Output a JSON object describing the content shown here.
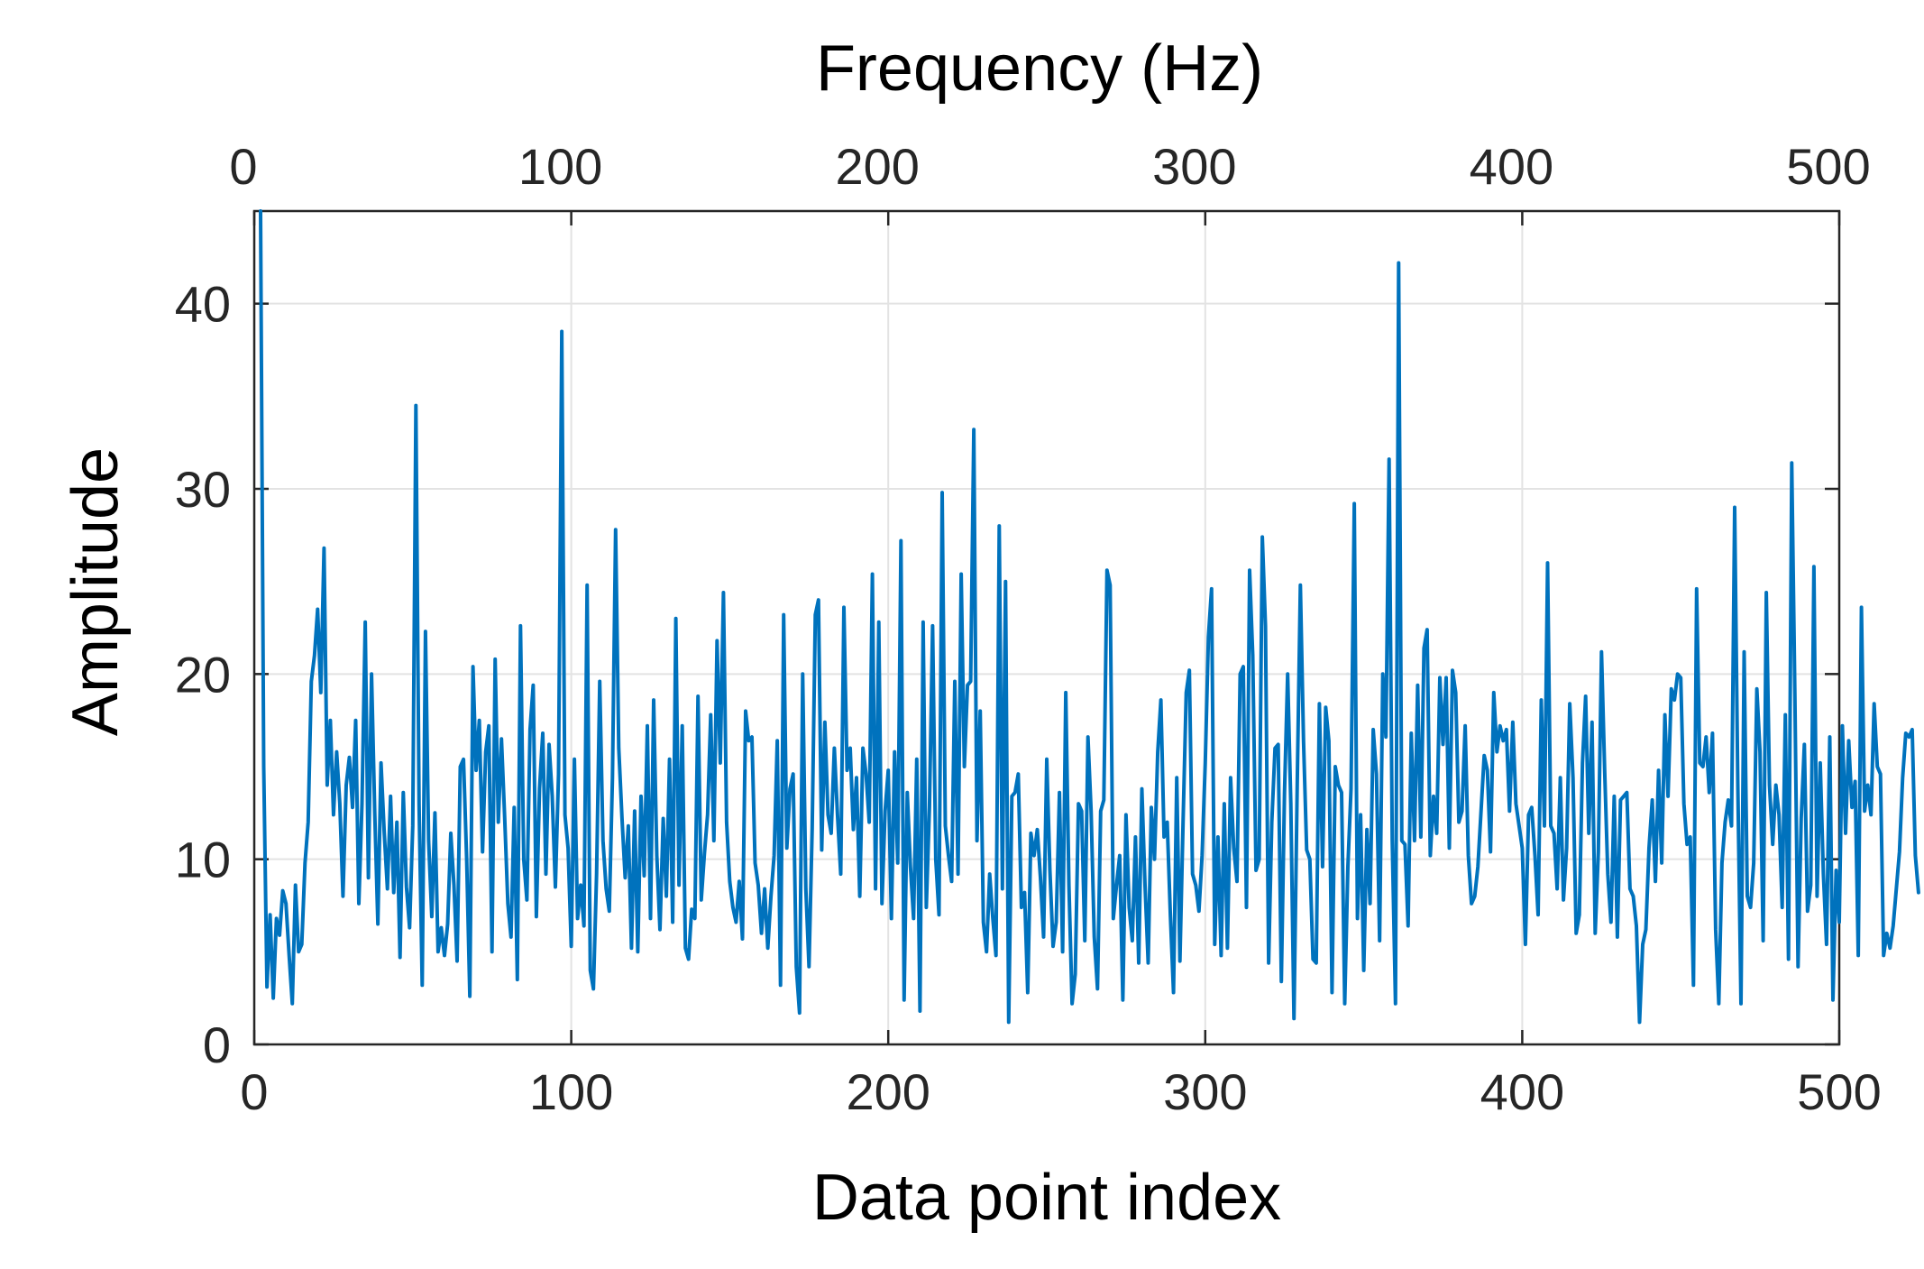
{
  "chart_data": {
    "type": "line",
    "title": "",
    "xlabel": "Data point index",
    "ylabel": "Amplitude",
    "x2label": "Frequency (Hz)",
    "xlim": [
      0,
      500
    ],
    "ylim": [
      0,
      45
    ],
    "x2lim": [
      0,
      500
    ],
    "xticks": [
      "0",
      "100",
      "200",
      "300",
      "400",
      "500"
    ],
    "yticks": [
      "0",
      "10",
      "20",
      "30",
      "40"
    ],
    "x2ticks": [
      "0",
      "100",
      "200",
      "300",
      "400",
      "500"
    ],
    "grid": true,
    "legend": "none",
    "series_color": "#0072BD",
    "series": [
      {
        "name": "",
        "x_start": 2,
        "x_step": 1,
        "values": [
          45,
          15,
          3.1,
          7,
          2.5,
          6.8,
          5.9,
          8.3,
          7.6,
          4.8,
          2.2,
          8.6,
          5,
          5.4,
          9.8,
          12,
          19.6,
          21,
          23.5,
          19,
          26.8,
          14,
          17.5,
          12.4,
          15.8,
          13,
          8,
          14,
          15.5,
          12.8,
          17.5,
          7.6,
          13,
          22.8,
          9,
          20,
          12.6,
          6.5,
          15.2,
          11.4,
          8.4,
          13.4,
          8.2,
          12,
          4.7,
          13.6,
          8.5,
          6.3,
          11.8,
          34.5,
          13,
          3.2,
          22.3,
          11,
          6.9,
          12.5,
          5,
          6.3,
          4.8,
          6.5,
          11.4,
          8.6,
          4.5,
          15,
          15.4,
          10,
          2.6,
          20.4,
          14.8,
          17.5,
          10.4,
          15.8,
          17.2,
          5,
          20.8,
          12,
          16.5,
          12.2,
          7.6,
          5.8,
          12.8,
          3.5,
          22.6,
          10,
          7.8,
          17,
          19.4,
          6.9,
          13.8,
          16.8,
          9.2,
          16.2,
          13.4,
          8.5,
          14.6,
          38.5,
          12.4,
          10.6,
          5.3,
          15.4,
          6.8,
          8.6,
          6.4,
          24.8,
          4,
          3,
          9.2,
          19.6,
          11,
          8.4,
          7.2,
          14.4,
          27.8,
          16,
          12.2,
          9,
          11.8,
          5.2,
          12.6,
          5,
          13.4,
          9.1,
          17.2,
          6.8,
          18.6,
          10.2,
          6.2,
          12.2,
          8,
          15.4,
          6.6,
          23,
          8.6,
          17.2,
          5.2,
          4.6,
          7.3,
          6.8,
          18.8,
          7.8,
          10.3,
          12.4,
          17.8,
          11,
          21.8,
          15.2,
          24.4,
          12,
          8.8,
          7.4,
          6.6,
          8.8,
          5.7,
          18,
          16.4,
          16.6,
          9.8,
          8.6,
          6,
          8.4,
          5.2,
          8,
          10.2,
          16.4,
          3.2,
          23.2,
          10.6,
          13.8,
          14.6,
          4.2,
          1.7,
          20,
          8.4,
          4.2,
          11.6,
          23.2,
          24,
          10.5,
          17.4,
          12.4,
          11.4,
          16,
          12.4,
          9.2,
          23.6,
          14.8,
          16,
          11.6,
          14.4,
          8,
          16,
          14.6,
          12,
          25.4,
          8.4,
          22.8,
          7.6,
          12.6,
          14.8,
          6.8,
          15.8,
          9.8,
          27.2,
          2.4,
          13.6,
          9.6,
          6.8,
          15.4,
          1.8,
          22.8,
          7.4,
          12.8,
          22.6,
          10,
          7,
          29.8,
          11.8,
          10.2,
          8.8,
          19.6,
          9.2,
          25.4,
          15,
          19.4,
          19.6,
          33.2,
          11,
          18,
          6.6,
          5,
          9.2,
          6.8,
          4.8,
          28,
          8.4,
          25,
          1.2,
          13.4,
          13.6,
          14.6,
          7.4,
          8.2,
          2.8,
          11.4,
          10.2,
          11.6,
          9,
          5.8,
          15.4,
          9.4,
          5.3,
          6.6,
          13.6,
          5,
          19,
          8.6,
          2.2,
          3.8,
          13,
          12.6,
          5.6,
          16.6,
          12.6,
          5.8,
          3,
          12.6,
          13.2,
          25.6,
          24.8,
          6.8,
          8.6,
          10.2,
          2.4,
          12.4,
          7.4,
          5.6,
          11.2,
          4.4,
          13.8,
          8.6,
          4.4,
          12.8,
          10,
          15.8,
          18.6,
          11.2,
          12,
          7,
          2.8,
          14.4,
          4.5,
          12,
          19,
          20.2,
          9.2,
          8.6,
          7.2,
          10.2,
          15.2,
          22,
          24.6,
          5.4,
          11.2,
          4.8,
          13,
          5.2,
          14.4,
          10.6,
          8.8,
          20,
          20.4,
          7.4,
          25.6,
          21,
          9.4,
          10,
          27.4,
          22.6,
          4.4,
          12,
          16,
          16.2,
          3.4,
          13.6,
          20,
          13,
          1.4,
          14,
          24.8,
          16.4,
          10.5,
          10,
          4.6,
          4.4,
          18.4,
          9.6,
          18.2,
          16.4,
          2.8,
          15,
          14,
          13.6,
          2.2,
          9.6,
          13.8,
          29.2,
          6.8,
          12.4,
          4,
          11.6,
          7.6,
          17,
          14.6,
          5.6,
          20,
          16.6,
          31.6,
          11,
          2.2,
          42.2,
          11,
          10.8,
          6.4,
          16.8,
          11,
          19.4,
          11.2,
          21.4,
          22.4,
          10.2,
          13.4,
          11.4,
          19.8,
          16.2,
          19.8,
          10.6,
          20.2,
          19,
          12,
          12.6,
          17.2,
          10.2,
          7.6,
          8,
          9.6,
          12.6,
          15.6,
          14.8,
          10.4,
          19,
          15.8,
          17.2,
          16.4,
          17,
          12.6,
          17.4,
          13,
          11.8,
          10.6,
          5.4,
          12.4,
          12.8,
          10.2,
          7,
          18.6,
          11.8,
          26,
          11.8,
          11.4,
          8.4,
          14.4,
          7.8,
          10.6,
          18.4,
          14.4,
          6,
          7,
          15.2,
          18.8,
          11.4,
          17.4,
          6,
          10.4,
          21.2,
          14.8,
          9.2,
          6.6,
          13.4,
          5.8,
          13.2,
          13.4,
          13.6,
          8.4,
          8,
          6.4,
          1.2,
          5.4,
          6.2,
          10.6,
          13.2,
          8.8,
          14.8,
          9.8,
          17.8,
          13.4,
          19.2,
          18.6,
          20,
          19.8,
          13,
          10.8,
          11.2,
          3.2,
          24.6,
          15.2,
          15,
          16.6,
          13.6,
          16.8,
          6.2,
          2.2,
          9.8,
          12,
          13.2,
          11.8,
          29,
          14,
          2.2,
          21.2,
          8,
          7.4,
          9.8,
          19.2,
          15.8,
          5.6,
          24.4,
          14,
          10.8,
          14,
          12.4,
          7.4,
          17.8,
          4.6,
          31.4,
          18.8,
          4.2,
          12.2,
          16.2,
          7.2,
          8.6,
          25.8,
          8,
          15.2,
          9.2,
          5.4,
          16.6,
          2.4,
          9.4,
          6.6,
          17.2,
          11.4,
          16.4,
          12.8,
          14.2,
          4.8,
          23.6,
          12.6,
          14,
          12.4,
          18.4,
          15,
          14.6,
          4.8,
          6,
          5.2,
          6.4,
          8.4,
          10.4,
          14.4,
          16.8,
          16.6,
          17,
          10.2,
          8.2
        ]
      }
    ]
  }
}
